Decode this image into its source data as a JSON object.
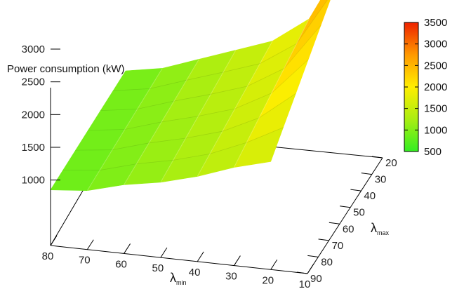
{
  "chart_data": {
    "type": "surface3d",
    "title": "",
    "zlabel": "Power consumption (kW)",
    "xlabel": {
      "symbol": "λ",
      "subscript": "min"
    },
    "ylabel": {
      "symbol": "λ",
      "subscript": "max"
    },
    "x_ticks": [
      "80",
      "70",
      "60",
      "50",
      "40",
      "30",
      "20",
      "10"
    ],
    "y_ticks": [
      "20",
      "30",
      "40",
      "50",
      "60",
      "70",
      "80",
      "90"
    ],
    "z_ticks": [
      "1000",
      "1500",
      "2000",
      "2500",
      "3000"
    ],
    "colorbar_ticks": [
      "500",
      "1000",
      "1500",
      "2000",
      "2500",
      "3000",
      "3500"
    ],
    "colorbar_range": [
      500,
      3500
    ],
    "colormap": [
      "#33ee22",
      "#aaee11",
      "#ffee00",
      "#ff9900",
      "#ee2200"
    ],
    "x_range": [
      10,
      80
    ],
    "y_range": [
      20,
      90
    ],
    "z_range": [
      0,
      3500
    ],
    "lambda_min_values": [
      80,
      70,
      60,
      50,
      40,
      30,
      20
    ],
    "lambda_max_values": [
      20,
      90
    ],
    "power_values": [
      [
        900,
        850
      ],
      [
        1000,
        900
      ],
      [
        1200,
        1050
      ],
      [
        1400,
        1150
      ],
      [
        1600,
        1300
      ],
      [
        2000,
        1500
      ],
      [
        3000,
        1650
      ]
    ]
  }
}
